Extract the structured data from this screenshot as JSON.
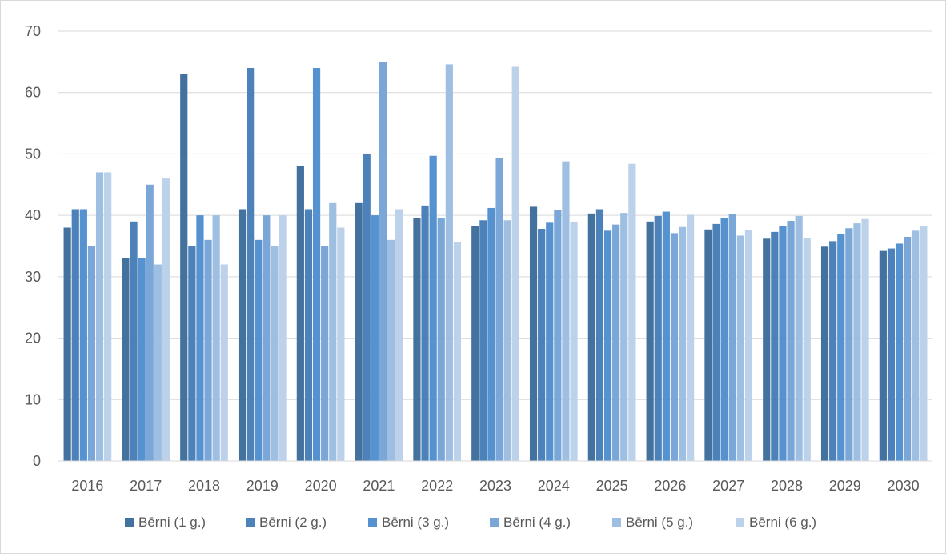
{
  "chart_data": {
    "type": "bar",
    "categories": [
      "2016",
      "2017",
      "2018",
      "2019",
      "2020",
      "2021",
      "2022",
      "2023",
      "2024",
      "2025",
      "2026",
      "2027",
      "2028",
      "2029",
      "2030"
    ],
    "series": [
      {
        "name": "Bērni (1 g.)",
        "color": "#44729f",
        "values": [
          38,
          33,
          63,
          41,
          48,
          42,
          39.6,
          38.2,
          41.4,
          40.3,
          39,
          37.7,
          36.2,
          34.9,
          34.2
        ]
      },
      {
        "name": "Bērni (2 g.)",
        "color": "#4c82b9",
        "values": [
          41,
          39,
          35,
          64,
          41,
          50,
          41.6,
          39.2,
          37.8,
          41,
          39.9,
          38.6,
          37.3,
          35.8,
          34.6
        ]
      },
      {
        "name": "Bērni (3 g.)",
        "color": "#5592cf",
        "values": [
          41,
          33,
          40,
          36,
          64,
          40,
          49.7,
          41.2,
          38.8,
          37.5,
          40.6,
          39.5,
          38.2,
          36.9,
          35.4
        ]
      },
      {
        "name": "Bērni (4 g.)",
        "color": "#7aa7d8",
        "values": [
          35,
          45,
          36,
          40,
          35,
          65,
          39.6,
          49.3,
          40.8,
          38.5,
          37.1,
          40.2,
          39.1,
          37.9,
          36.5
        ]
      },
      {
        "name": "Bērni (5 g.)",
        "color": "#9fbfe2",
        "values": [
          47,
          32,
          40,
          35,
          42,
          36,
          64.6,
          39.2,
          48.8,
          40.4,
          38.1,
          36.7,
          39.9,
          38.7,
          37.5
        ]
      },
      {
        "name": "Bērni (6 g.)",
        "color": "#bcd1ea",
        "values": [
          47,
          46,
          32,
          40,
          38,
          41,
          35.6,
          64.2,
          38.9,
          48.4,
          40.1,
          37.6,
          36.3,
          39.4,
          38.3
        ]
      }
    ],
    "y_ticks": [
      "0",
      "10",
      "20",
      "30",
      "40",
      "50",
      "60",
      "70"
    ],
    "ylim": [
      0,
      70
    ],
    "grid": true,
    "legend_position": "bottom"
  }
}
